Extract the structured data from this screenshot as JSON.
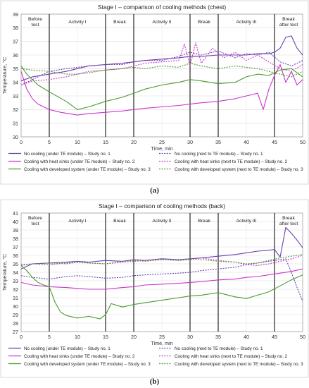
{
  "chart_data": [
    {
      "type": "line",
      "title": "Stage I – comparison of cooling methods (chest)",
      "xlabel": "Time, min",
      "ylabel": "Temperature, °C",
      "xlim": [
        0,
        50
      ],
      "ylim": [
        30,
        39
      ],
      "xticks": [
        0,
        5,
        10,
        15,
        20,
        25,
        30,
        35,
        40,
        45,
        50
      ],
      "yticks": [
        30,
        31,
        32,
        33,
        34,
        35,
        36,
        37,
        38,
        39
      ],
      "grid": true,
      "legend_position": "bottom",
      "phase_dividers": [
        5,
        15,
        20,
        30,
        35,
        45
      ],
      "phases": [
        {
          "label": "Before test",
          "start": 0,
          "end": 5
        },
        {
          "label": "Activity I",
          "start": 5,
          "end": 15
        },
        {
          "label": "Break",
          "start": 15,
          "end": 20
        },
        {
          "label": "Activity II",
          "start": 20,
          "end": 30
        },
        {
          "label": "Break",
          "start": 30,
          "end": 35
        },
        {
          "label": "Activity III",
          "start": 35,
          "end": 45
        },
        {
          "label": "Break after test",
          "start": 45,
          "end": 50
        }
      ],
      "caption": "(a)",
      "series": [
        {
          "name": "No cooling (under TE module) – Study no. 1",
          "color": "#6a3fb0",
          "dash": "solid",
          "x": [
            0,
            2,
            5,
            8,
            10,
            12,
            15,
            18,
            20,
            22,
            25,
            28,
            30,
            32,
            35,
            38,
            40,
            42,
            44,
            45,
            46,
            47,
            48,
            49,
            50
          ],
          "y": [
            34.1,
            34.4,
            34.6,
            34.8,
            35.0,
            35.2,
            35.3,
            35.4,
            35.5,
            35.6,
            35.7,
            35.8,
            35.9,
            35.9,
            36.0,
            36.0,
            36.0,
            36.1,
            36.1,
            36.2,
            36.5,
            37.3,
            37.4,
            36.5,
            36.0
          ]
        },
        {
          "name": "No cooling (next to TE module) – Study no. 1",
          "color": "#6a3fb0",
          "dash": "dotted",
          "x": [
            0,
            2,
            5,
            8,
            10,
            12,
            15,
            18,
            20,
            22,
            25,
            28,
            30,
            32,
            35,
            38,
            40,
            42,
            44,
            46,
            48,
            50
          ],
          "y": [
            33.8,
            34.2,
            34.8,
            35.0,
            35.1,
            35.2,
            35.3,
            35.3,
            35.5,
            35.6,
            35.6,
            35.9,
            36.2,
            36.0,
            36.3,
            35.8,
            36.1,
            36.0,
            36.2,
            35.5,
            35.2,
            35.6
          ]
        },
        {
          "name": "Cooling with heat sinks (under TE module) – Study no. 2",
          "color": "#cc33cc",
          "dash": "solid",
          "x": [
            0,
            1,
            2,
            3,
            5,
            7,
            10,
            12,
            15,
            18,
            20,
            22,
            25,
            28,
            30,
            32,
            35,
            38,
            40,
            42,
            43,
            44,
            45,
            46,
            47,
            48,
            49,
            50
          ],
          "y": [
            34.8,
            33.5,
            32.8,
            32.4,
            32.0,
            31.8,
            31.6,
            31.7,
            31.8,
            31.9,
            32.0,
            32.1,
            32.2,
            32.3,
            32.4,
            32.5,
            32.6,
            32.8,
            33.0,
            33.2,
            32.0,
            33.5,
            34.5,
            35.3,
            34.0,
            34.8,
            33.8,
            34.2
          ]
        },
        {
          "name": "Cooling with heat sinks (next to TE module) – Study no. 2",
          "color": "#cc33cc",
          "dash": "dotted",
          "x": [
            0,
            2,
            5,
            8,
            10,
            12,
            15,
            18,
            20,
            22,
            25,
            28,
            29,
            30,
            31,
            32,
            34,
            36,
            38,
            40,
            42,
            44,
            46,
            48,
            50
          ],
          "y": [
            33.8,
            34.1,
            34.2,
            34.4,
            34.6,
            34.8,
            34.9,
            35.0,
            35.2,
            35.4,
            35.5,
            35.6,
            36.8,
            35.2,
            36.9,
            35.4,
            36.5,
            35.8,
            36.2,
            35.6,
            36.0,
            35.5,
            35.0,
            34.8,
            35.3
          ]
        },
        {
          "name": "Cooling with developed system (under TE module) – Study no. 3",
          "color": "#4a9a2a",
          "dash": "solid",
          "x": [
            0,
            1,
            3,
            5,
            8,
            10,
            12,
            15,
            18,
            20,
            22,
            25,
            28,
            30,
            32,
            35,
            38,
            40,
            42,
            44,
            46,
            48,
            50
          ],
          "y": [
            35.2,
            34.6,
            33.8,
            33.3,
            32.6,
            32.0,
            32.2,
            32.6,
            32.9,
            33.2,
            33.5,
            33.8,
            34.0,
            34.2,
            34.1,
            33.9,
            34.0,
            34.4,
            34.6,
            34.5,
            34.9,
            35.0,
            34.4
          ]
        },
        {
          "name": "Cooling with developed system (next to TE module) – Study no. 3",
          "color": "#4a9a2a",
          "dash": "dotted",
          "x": [
            0,
            2,
            5,
            8,
            10,
            12,
            15,
            18,
            20,
            22,
            25,
            28,
            30,
            32,
            35,
            38,
            40,
            42,
            44,
            46,
            48,
            50
          ],
          "y": [
            35.0,
            34.9,
            34.8,
            34.6,
            34.6,
            34.7,
            34.9,
            35.0,
            35.1,
            35.0,
            35.2,
            35.1,
            35.4,
            35.2,
            35.0,
            35.2,
            35.1,
            35.0,
            34.8,
            34.6,
            34.4,
            34.8
          ]
        }
      ]
    },
    {
      "type": "line",
      "title": "Stage I – comparison of cooling methods (back)",
      "xlabel": "Time, min",
      "ylabel": "Temperature, °C",
      "xlim": [
        0,
        50
      ],
      "ylim": [
        27,
        41
      ],
      "xticks": [
        0,
        5,
        10,
        15,
        20,
        25,
        30,
        35,
        40,
        45,
        50
      ],
      "yticks": [
        27,
        28,
        29,
        30,
        31,
        32,
        33,
        34,
        35,
        36,
        37,
        38,
        39,
        40,
        41
      ],
      "grid": true,
      "legend_position": "bottom",
      "phase_dividers": [
        5,
        15,
        20,
        30,
        35,
        45
      ],
      "phases": [
        {
          "label": "Before test",
          "start": 0,
          "end": 5
        },
        {
          "label": "Activity I",
          "start": 5,
          "end": 15
        },
        {
          "label": "Break",
          "start": 15,
          "end": 20
        },
        {
          "label": "Activity II",
          "start": 20,
          "end": 30
        },
        {
          "label": "Break",
          "start": 30,
          "end": 35
        },
        {
          "label": "Activity III",
          "start": 35,
          "end": 45
        },
        {
          "label": "Break after test",
          "start": 45,
          "end": 50
        }
      ],
      "caption": "(b)",
      "series": [
        {
          "name": "No cooling (under TE module) – Study no. 1",
          "color": "#6a3fb0",
          "dash": "solid",
          "x": [
            0,
            2,
            5,
            8,
            10,
            12,
            15,
            18,
            20,
            22,
            25,
            28,
            30,
            32,
            35,
            38,
            40,
            42,
            44,
            45,
            46,
            47,
            48,
            49,
            50
          ],
          "y": [
            34.4,
            35.0,
            35.1,
            35.2,
            35.3,
            35.2,
            35.4,
            35.3,
            35.5,
            35.4,
            35.6,
            35.5,
            35.6,
            35.7,
            35.9,
            36.1,
            36.3,
            36.5,
            36.6,
            36.7,
            35.8,
            39.3,
            38.6,
            37.8,
            36.9
          ]
        },
        {
          "name": "No cooling (next to TE module) – Study no. 1",
          "color": "#6a3fb0",
          "dash": "dotted",
          "x": [
            0,
            2,
            5,
            8,
            10,
            12,
            15,
            18,
            20,
            22,
            25,
            28,
            30,
            32,
            35,
            38,
            40,
            42,
            44,
            46,
            47,
            48,
            49,
            50
          ],
          "y": [
            33.6,
            33.4,
            33.2,
            33.5,
            33.6,
            33.5,
            33.3,
            33.4,
            33.6,
            33.7,
            33.8,
            33.9,
            34.0,
            34.2,
            34.4,
            34.6,
            34.9,
            35.1,
            35.3,
            35.5,
            35.6,
            34.0,
            32.2,
            30.6
          ]
        },
        {
          "name": "Cooling with heat sinks (under TE module) – Study no. 2",
          "color": "#cc33cc",
          "dash": "solid",
          "x": [
            0,
            2,
            5,
            8,
            10,
            12,
            15,
            18,
            20,
            22,
            25,
            28,
            30,
            32,
            35,
            38,
            40,
            42,
            44,
            46,
            48,
            50
          ],
          "y": [
            32.8,
            32.5,
            32.3,
            32.2,
            32.1,
            32.0,
            32.0,
            32.2,
            32.3,
            32.5,
            32.6,
            32.7,
            32.8,
            32.9,
            33.1,
            33.2,
            33.4,
            33.5,
            33.7,
            33.9,
            34.1,
            34.4
          ]
        },
        {
          "name": "Cooling with heat sinks (next to TE module) – Study no. 2",
          "color": "#cc33cc",
          "dash": "dotted",
          "x": [
            0,
            2,
            5,
            8,
            10,
            12,
            15,
            18,
            20,
            22,
            25,
            28,
            30,
            32,
            35,
            38,
            40,
            42,
            44,
            46,
            48,
            50
          ],
          "y": [
            34.8,
            35.0,
            34.9,
            35.1,
            35.2,
            35.1,
            35.0,
            35.2,
            35.3,
            35.4,
            35.5,
            35.4,
            35.5,
            35.7,
            35.4,
            35.2,
            34.9,
            34.8,
            35.0,
            35.3,
            35.6,
            36.0
          ]
        },
        {
          "name": "Cooling with developed system (under TE module) – Study no. 3",
          "color": "#4a9a2a",
          "dash": "solid",
          "x": [
            0,
            1,
            2,
            3,
            4,
            5,
            6,
            7,
            8,
            10,
            12,
            14,
            15,
            16,
            18,
            20,
            22,
            25,
            28,
            30,
            32,
            35,
            38,
            40,
            42,
            44,
            46,
            48,
            50
          ],
          "y": [
            34.8,
            34.2,
            33.4,
            32.8,
            32.5,
            32.3,
            30.5,
            29.3,
            28.9,
            28.6,
            28.8,
            28.5,
            29.0,
            30.3,
            29.9,
            30.2,
            30.4,
            30.7,
            31.0,
            31.2,
            31.3,
            31.6,
            31.1,
            30.9,
            31.3,
            31.7,
            32.4,
            33.1,
            33.7
          ]
        },
        {
          "name": "Cooling with developed system (next to TE module) – Study no. 3",
          "color": "#4a9a2a",
          "dash": "dotted",
          "x": [
            0,
            2,
            5,
            8,
            10,
            12,
            15,
            18,
            20,
            22,
            25,
            28,
            30,
            32,
            35,
            38,
            40,
            42,
            44,
            46,
            48,
            50
          ],
          "y": [
            34.9,
            35.0,
            35.1,
            35.0,
            35.2,
            35.1,
            35.0,
            35.3,
            35.4,
            35.3,
            35.5,
            35.4,
            35.6,
            35.5,
            35.3,
            35.2,
            35.0,
            35.1,
            35.4,
            35.7,
            35.9,
            36.1
          ]
        }
      ]
    }
  ]
}
